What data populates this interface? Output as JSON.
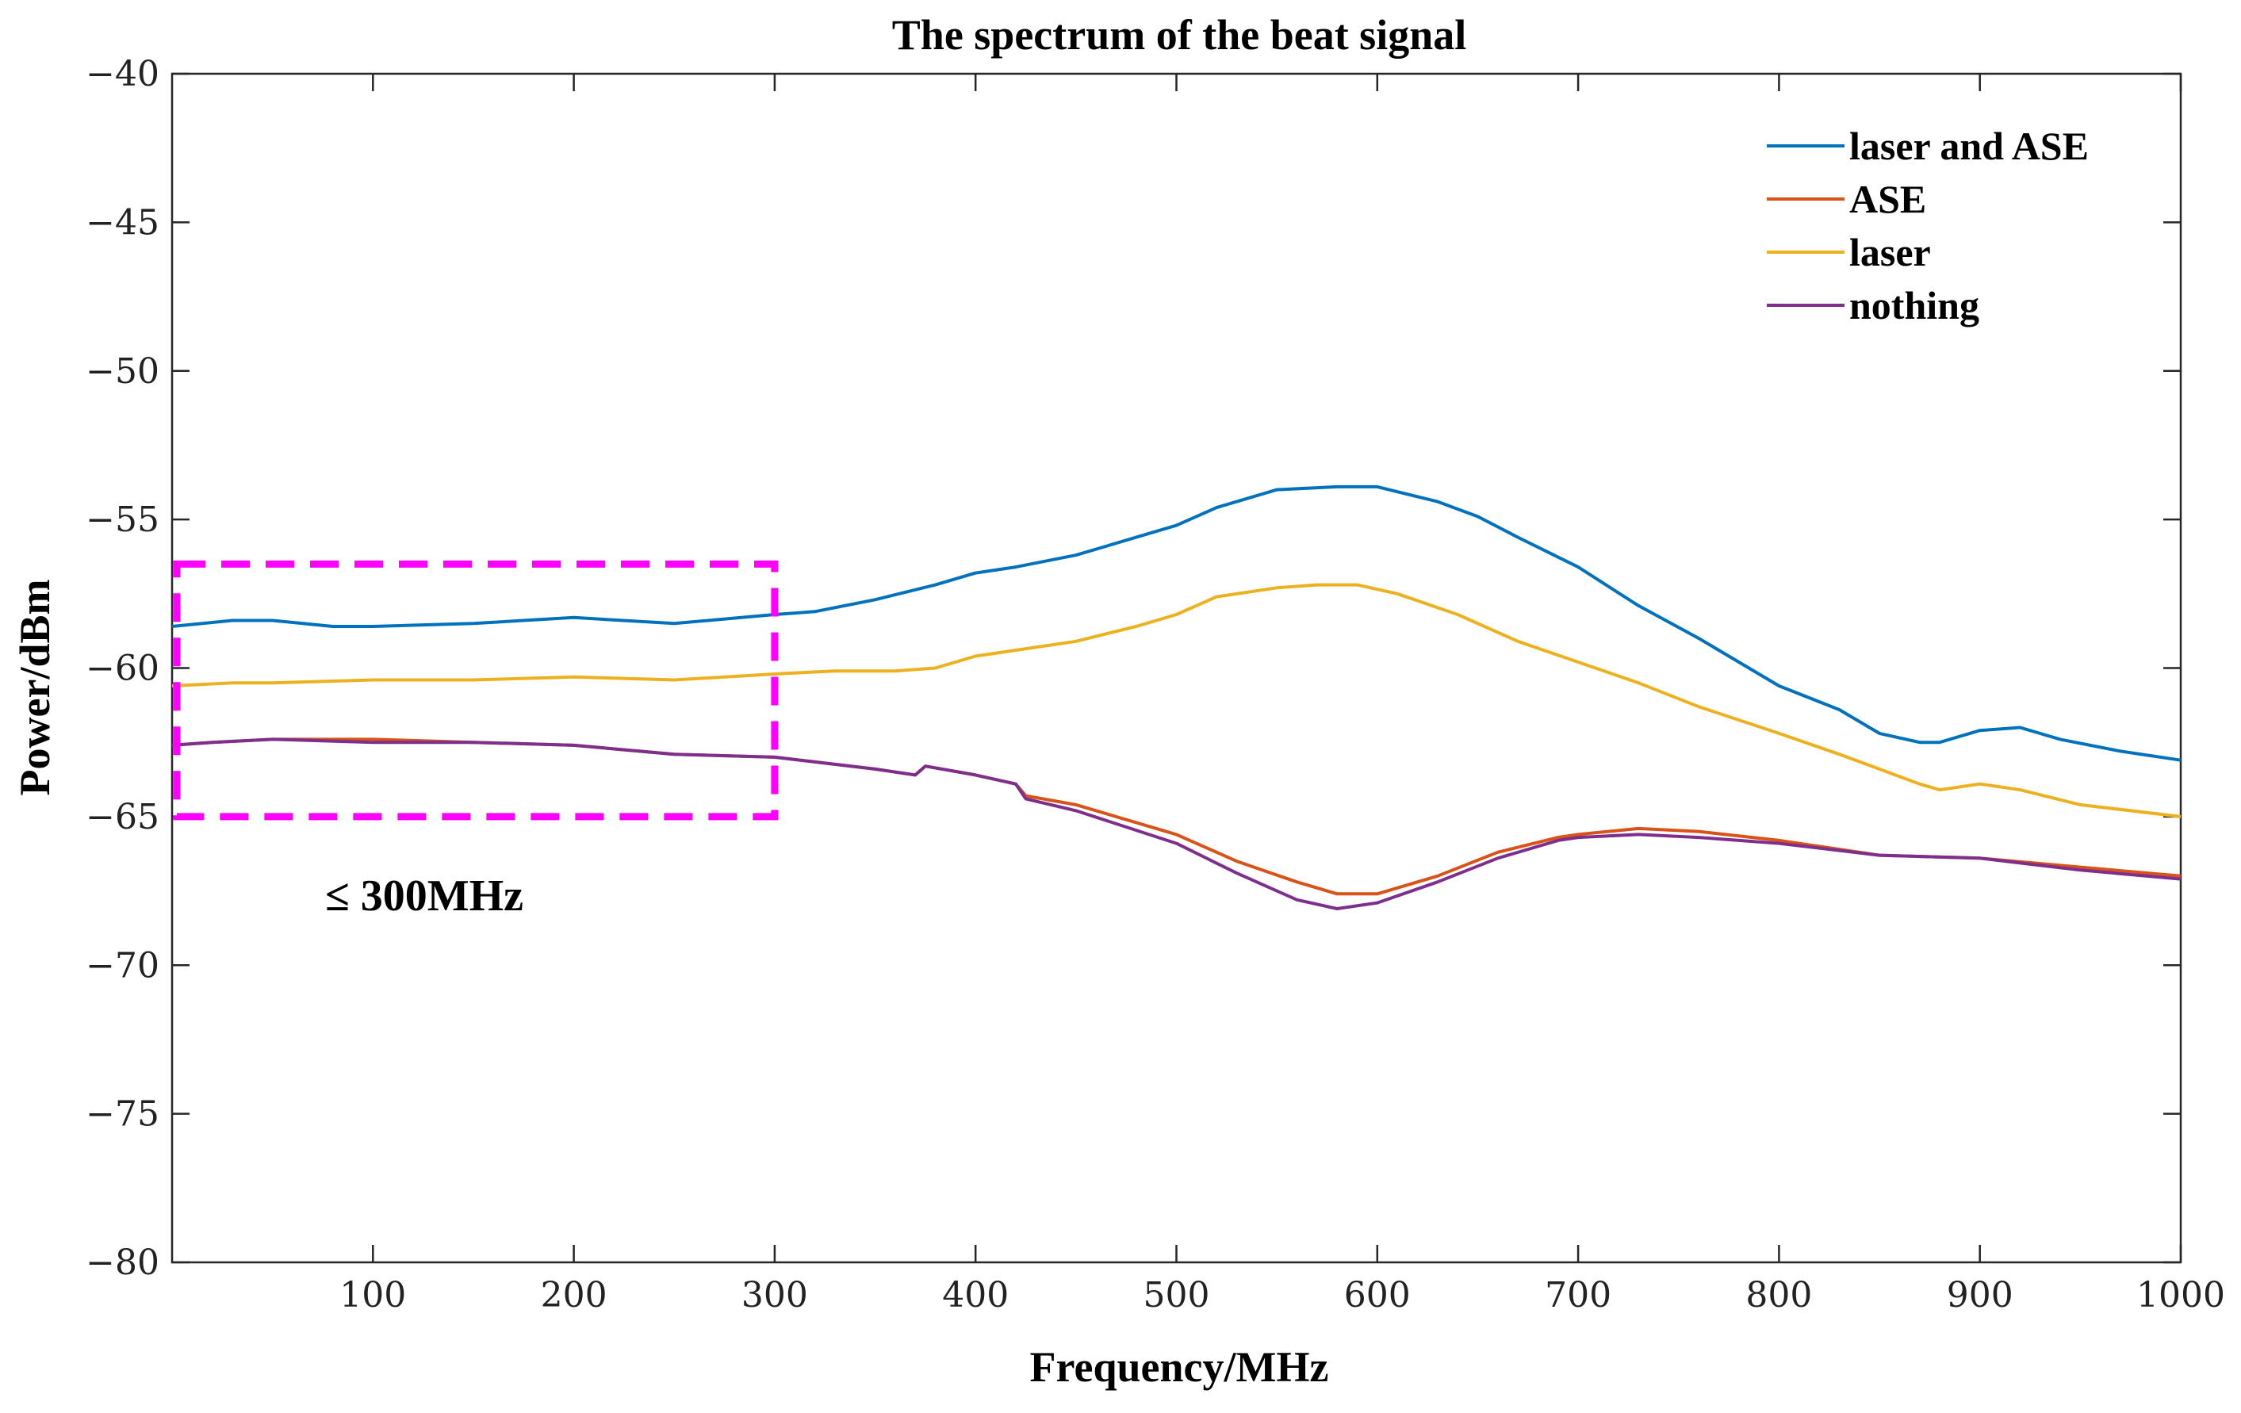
{
  "chart_data": {
    "type": "line",
    "title": "The spectrum of the beat signal",
    "xlabel": "Frequency/MHz",
    "ylabel": "Power/dBm",
    "xlim": [
      0,
      1000
    ],
    "ylim": [
      -80,
      -40
    ],
    "xticks": [
      100,
      200,
      300,
      400,
      500,
      600,
      700,
      800,
      900,
      1000
    ],
    "yticks": [
      -40,
      -45,
      -50,
      -55,
      -60,
      -65,
      -70,
      -75,
      -80
    ],
    "legend_position": "top-right",
    "series": [
      {
        "name": "laser and ASE",
        "color": "#0072BD",
        "x": [
          0,
          30,
          50,
          80,
          100,
          150,
          200,
          250,
          300,
          320,
          350,
          380,
          400,
          420,
          450,
          480,
          500,
          520,
          550,
          580,
          600,
          630,
          650,
          670,
          700,
          730,
          760,
          800,
          830,
          850,
          870,
          880,
          900,
          920,
          940,
          970,
          1000
        ],
        "y": [
          -58.6,
          -58.4,
          -58.4,
          -58.6,
          -58.6,
          -58.5,
          -58.3,
          -58.5,
          -58.2,
          -58.1,
          -57.7,
          -57.2,
          -56.8,
          -56.6,
          -56.2,
          -55.6,
          -55.2,
          -54.6,
          -54.0,
          -53.9,
          -53.9,
          -54.4,
          -54.9,
          -55.6,
          -56.6,
          -57.9,
          -59.0,
          -60.6,
          -61.4,
          -62.2,
          -62.5,
          -62.5,
          -62.1,
          -62.0,
          -62.4,
          -62.8,
          -63.1
        ]
      },
      {
        "name": "ASE",
        "color": "#D95319",
        "x": [
          0,
          20,
          50,
          100,
          150,
          200,
          250,
          300,
          350,
          370,
          375,
          400,
          420,
          425,
          450,
          500,
          530,
          560,
          580,
          600,
          630,
          660,
          690,
          700,
          730,
          760,
          800,
          850,
          900,
          950,
          1000
        ],
        "y": [
          -62.6,
          -62.5,
          -62.4,
          -62.4,
          -62.5,
          -62.6,
          -62.9,
          -63.0,
          -63.4,
          -63.6,
          -63.3,
          -63.6,
          -63.9,
          -64.3,
          -64.6,
          -65.6,
          -66.5,
          -67.2,
          -67.6,
          -67.6,
          -67.0,
          -66.2,
          -65.7,
          -65.6,
          -65.4,
          -65.5,
          -65.8,
          -66.3,
          -66.4,
          -66.7,
          -67.0
        ]
      },
      {
        "name": "laser",
        "color": "#EDB120",
        "x": [
          0,
          30,
          50,
          100,
          150,
          200,
          250,
          300,
          330,
          360,
          380,
          400,
          420,
          450,
          480,
          500,
          520,
          550,
          570,
          590,
          610,
          640,
          670,
          700,
          730,
          760,
          800,
          830,
          850,
          870,
          880,
          900,
          920,
          950,
          1000
        ],
        "y": [
          -60.6,
          -60.5,
          -60.5,
          -60.4,
          -60.4,
          -60.3,
          -60.4,
          -60.2,
          -60.1,
          -60.1,
          -60.0,
          -59.6,
          -59.4,
          -59.1,
          -58.6,
          -58.2,
          -57.6,
          -57.3,
          -57.2,
          -57.2,
          -57.5,
          -58.2,
          -59.1,
          -59.8,
          -60.5,
          -61.3,
          -62.2,
          -62.9,
          -63.4,
          -63.9,
          -64.1,
          -63.9,
          -64.1,
          -64.6,
          -65.0
        ]
      },
      {
        "name": "nothing",
        "color": "#7E2F8E",
        "x": [
          0,
          20,
          50,
          100,
          150,
          200,
          250,
          300,
          350,
          370,
          375,
          400,
          420,
          425,
          450,
          500,
          530,
          560,
          580,
          600,
          630,
          660,
          690,
          700,
          730,
          760,
          800,
          850,
          900,
          950,
          1000
        ],
        "y": [
          -62.6,
          -62.5,
          -62.4,
          -62.5,
          -62.5,
          -62.6,
          -62.9,
          -63.0,
          -63.4,
          -63.6,
          -63.3,
          -63.6,
          -63.9,
          -64.4,
          -64.8,
          -65.9,
          -66.9,
          -67.8,
          -68.1,
          -67.9,
          -67.2,
          -66.4,
          -65.8,
          -65.7,
          -65.6,
          -65.7,
          -65.9,
          -66.3,
          -66.4,
          -66.8,
          -67.1
        ]
      }
    ],
    "annotations": [
      {
        "text": "≤ 300MHz",
        "highlight_box": {
          "x": [
            0,
            300
          ],
          "y": [
            -65,
            -56.5
          ]
        },
        "color": "#FF00FF"
      }
    ]
  }
}
